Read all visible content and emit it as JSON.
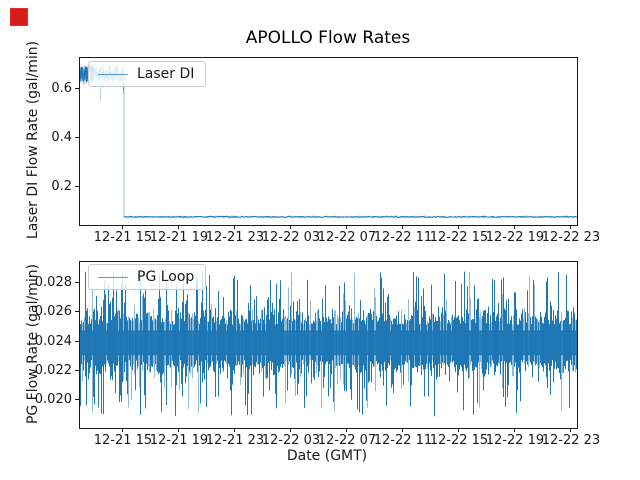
{
  "marker": {
    "color": "#d51c1c"
  },
  "figure_title": "APOLLO Flow Rates",
  "chart_data": [
    {
      "type": "line",
      "title": "APOLLO Flow Rates",
      "ylabel": "Laser DI Flow Rate (gal/min)",
      "legend": {
        "label": "Laser DI",
        "position": "upper left"
      },
      "line_color": "#1f77b4",
      "grid": false,
      "x_tick_labels": [
        "12-21 15",
        "12-21 19",
        "12-21 23",
        "12-22 03",
        "12-22 07",
        "12-22 11",
        "12-22 15",
        "12-22 19",
        "12-22 23"
      ],
      "x_tick_hours": [
        0,
        4,
        8,
        12,
        16,
        20,
        24,
        28,
        32
      ],
      "xlim_hours": [
        -3.14,
        32.36
      ],
      "y_ticks": [
        0.2,
        0.4,
        0.6
      ],
      "y_tick_labels": [
        "0.2",
        "0.4",
        "0.6"
      ],
      "ylim": [
        0.049,
        0.727
      ],
      "segments": [
        {
          "start_hour": -3.14,
          "end_hour": 0,
          "mean": 0.662,
          "noise": 0.035
        },
        {
          "start_hour": 0,
          "end_hour": 32.36,
          "mean": 0.082,
          "noise": 0.004
        }
      ]
    },
    {
      "type": "line",
      "ylabel": "PG Flow Rate (gal/min)",
      "xlabel": "Date (GMT)",
      "legend": {
        "label": "PG Loop",
        "position": "upper left"
      },
      "line_color": "#1f77b4",
      "grid": false,
      "x_tick_labels": [
        "12-21 15",
        "12-21 19",
        "12-21 23",
        "12-22 03",
        "12-22 07",
        "12-22 11",
        "12-22 15",
        "12-22 19",
        "12-22 23"
      ],
      "x_tick_hours": [
        0,
        4,
        8,
        12,
        16,
        20,
        24,
        28,
        32
      ],
      "xlim_hours": [
        -3.14,
        32.36
      ],
      "y_ticks": [
        0.02,
        0.022,
        0.024,
        0.026,
        0.028
      ],
      "y_tick_labels": [
        "0.020",
        "0.022",
        "0.024",
        "0.026",
        "0.028"
      ],
      "ylim": [
        0.0181,
        0.0295
      ],
      "noise_band": {
        "mean": 0.024,
        "core_low": 0.0228,
        "core_high": 0.0252,
        "typical_high": 0.026,
        "typical_low": 0.022,
        "spike_high_max": 0.029,
        "spike_low_min": 0.019
      }
    }
  ]
}
